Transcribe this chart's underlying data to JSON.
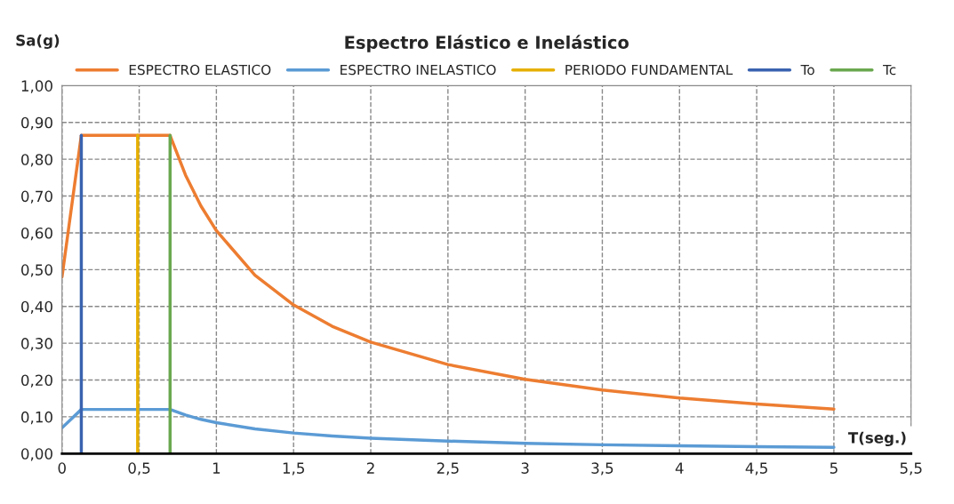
{
  "chart_data": {
    "type": "line",
    "title": "Espectro Elástico e Inelástico",
    "xlabel": "T(seg.)",
    "ylabel": "Sa(g)",
    "x": [
      0,
      0.125,
      0.7,
      0.8,
      0.9,
      1,
      1.25,
      1.5,
      1.75,
      2,
      2.5,
      3,
      3.5,
      4,
      4.5,
      5
    ],
    "series": [
      {
        "name": "ESPECTRO ELASTICO",
        "color": "#ed7d31",
        "values": [
          0.48,
          0.865,
          0.865,
          0.757,
          0.673,
          0.606,
          0.485,
          0.404,
          0.346,
          0.303,
          0.242,
          0.202,
          0.173,
          0.151,
          0.135,
          0.121
        ]
      },
      {
        "name": "ESPECTRO INELASTICO",
        "color": "#5b9bd5",
        "values": [
          0.07,
          0.12,
          0.12,
          0.105,
          0.093,
          0.084,
          0.067,
          0.056,
          0.048,
          0.042,
          0.034,
          0.028,
          0.024,
          0.021,
          0.019,
          0.017
        ]
      },
      {
        "name": "PERIODO FUNDAMENTAL",
        "color": "#e6b000",
        "x": [
          0.49,
          0.49
        ],
        "values": [
          0,
          0.865
        ]
      },
      {
        "name": "To",
        "color": "#3a63b0",
        "x": [
          0.125,
          0.125
        ],
        "values": [
          0,
          0.865
        ]
      },
      {
        "name": "Tc",
        "color": "#6aa84f",
        "x": [
          0.7,
          0.7
        ],
        "values": [
          0,
          0.865
        ]
      }
    ],
    "xlim": [
      0,
      5.5
    ],
    "ylim": [
      0,
      1.0
    ],
    "xticks": [
      0,
      {
        "value": 0.5,
        "label": "0,5"
      },
      1,
      {
        "value": 1.5,
        "label": "1,5"
      },
      2,
      {
        "value": 2.5,
        "label": "2,5"
      },
      3,
      {
        "value": 3.5,
        "label": "3,5"
      },
      4,
      {
        "value": 4.5,
        "label": "4,5"
      },
      5,
      {
        "value": 5.5,
        "label": "5,5"
      }
    ],
    "yticks": [
      {
        "value": 0,
        "label": "0,00"
      },
      {
        "value": 0.1,
        "label": "0,10"
      },
      {
        "value": 0.2,
        "label": "0,20"
      },
      {
        "value": 0.3,
        "label": "0,30"
      },
      {
        "value": 0.4,
        "label": "0,40"
      },
      {
        "value": 0.5,
        "label": "0,50"
      },
      {
        "value": 0.6,
        "label": "0,60"
      },
      {
        "value": 0.7,
        "label": "0,70"
      },
      {
        "value": 0.8,
        "label": "0,80"
      },
      {
        "value": 0.9,
        "label": "0,90"
      },
      {
        "value": 1.0,
        "label": "1,00"
      }
    ],
    "grid": true,
    "legend": "top",
    "line_style": "solid",
    "marker": "none"
  }
}
